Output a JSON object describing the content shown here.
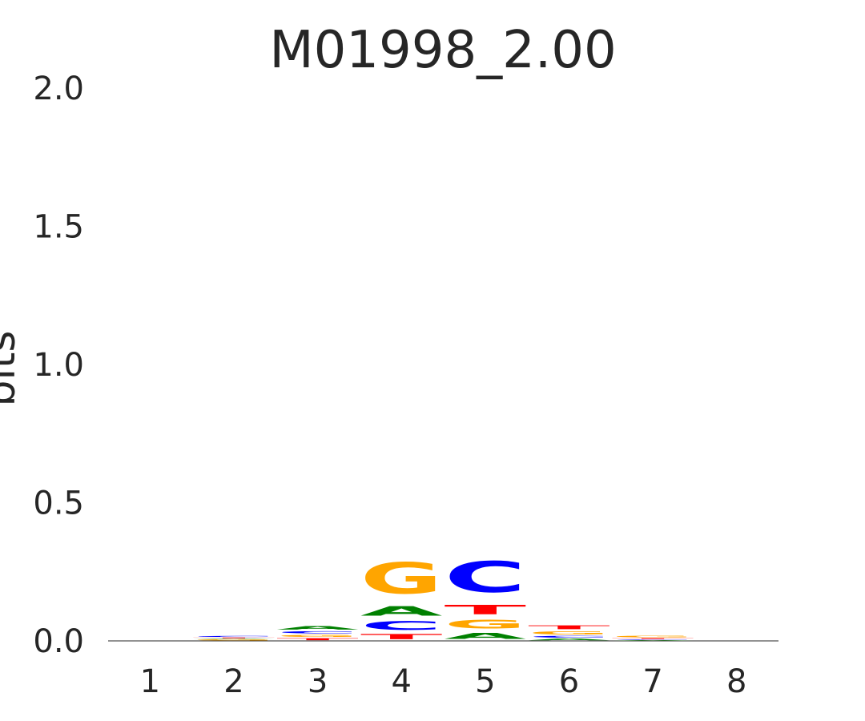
{
  "chart_data": {
    "type": "sequence_logo",
    "title": "M01998_2.00",
    "ylabel": "bits",
    "xlabel": "",
    "ylim": [
      0,
      2.0
    ],
    "yticks": [
      "0.0",
      "0.5",
      "1.0",
      "1.5",
      "2.0"
    ],
    "ytick_values": [
      0.0,
      0.5,
      1.0,
      1.5,
      2.0
    ],
    "positions": [
      "1",
      "2",
      "3",
      "4",
      "5",
      "6",
      "7",
      "8"
    ],
    "colors": {
      "A": "#008000",
      "C": "#0000ff",
      "G": "#ffa500",
      "T": "#ff0000"
    },
    "stacks": [
      [],
      [
        {
          "letter": "G",
          "bits": 0.006
        },
        {
          "letter": "A",
          "bits": 0.003
        },
        {
          "letter": "T",
          "bits": 0.004
        },
        {
          "letter": "C",
          "bits": 0.006
        }
      ],
      [
        {
          "letter": "T",
          "bits": 0.012
        },
        {
          "letter": "G",
          "bits": 0.013
        },
        {
          "letter": "C",
          "bits": 0.012
        },
        {
          "letter": "A",
          "bits": 0.02
        }
      ],
      [
        {
          "letter": "T",
          "bits": 0.03
        },
        {
          "letter": "C",
          "bits": 0.05
        },
        {
          "letter": "A",
          "bits": 0.055
        },
        {
          "letter": "G",
          "bits": 0.18
        }
      ],
      [
        {
          "letter": "A",
          "bits": 0.035
        },
        {
          "letter": "G",
          "bits": 0.05
        },
        {
          "letter": "T",
          "bits": 0.055
        },
        {
          "letter": "C",
          "bits": 0.18
        }
      ],
      [
        {
          "letter": "A",
          "bits": 0.01
        },
        {
          "letter": "C",
          "bits": 0.01
        },
        {
          "letter": "G",
          "bits": 0.018
        },
        {
          "letter": "T",
          "bits": 0.022
        }
      ],
      [
        {
          "letter": "A",
          "bits": 0.003
        },
        {
          "letter": "C",
          "bits": 0.003
        },
        {
          "letter": "T",
          "bits": 0.005
        },
        {
          "letter": "G",
          "bits": 0.008
        }
      ],
      []
    ]
  }
}
